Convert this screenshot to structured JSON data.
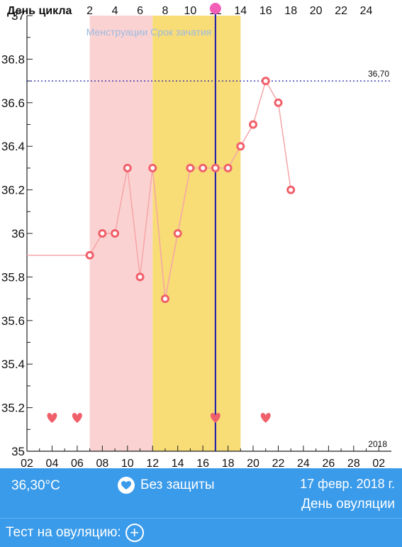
{
  "chart_data": {
    "type": "line",
    "title": "День цикла",
    "year_label": "2018",
    "y_ticks": [
      "35",
      "35.2",
      "35.4",
      "35.6",
      "35.8",
      "36",
      "36.2",
      "36.4",
      "36.6",
      "36.8",
      "37"
    ],
    "ylim": [
      35,
      37
    ],
    "top_axis_ticks": [
      2,
      4,
      6,
      8,
      10,
      12,
      14,
      16,
      18,
      20,
      22,
      24
    ],
    "bottom_axis_ticks": [
      "02",
      "04",
      "06",
      "08",
      "10",
      "12",
      "14",
      "16",
      "18",
      "20",
      "22",
      "24",
      "26",
      "28",
      "02"
    ],
    "bottom_axis_values": [
      2,
      4,
      6,
      8,
      10,
      12,
      14,
      16,
      18,
      20,
      22,
      24,
      26,
      28,
      30
    ],
    "x_range": [
      2,
      31
    ],
    "series": [
      {
        "x": [
          7,
          8,
          9,
          10,
          11,
          12,
          13,
          14,
          15,
          16,
          17,
          18,
          19,
          20,
          21,
          22,
          23
        ],
        "values": [
          35.9,
          36.0,
          36.0,
          36.3,
          35.8,
          36.3,
          35.7,
          36.0,
          36.3,
          36.3,
          36.3,
          36.3,
          36.4,
          36.5,
          36.7,
          36.6,
          36.2
        ]
      }
    ],
    "lead_in": {
      "from": 2,
      "to": 7,
      "value": 35.9
    },
    "coverline": {
      "value": 36.7,
      "label": "36,70"
    },
    "ovulation_day": 17,
    "bands": [
      {
        "name": "Менструации",
        "from": 7,
        "to": 12,
        "color": "#fbd2d2"
      },
      {
        "name": "Срок зачатия",
        "from": 12,
        "to": 19,
        "color": "#f8dc76"
      }
    ],
    "hearts": [
      4,
      6,
      17,
      21
    ],
    "colors": {
      "line": "#f5a5a8",
      "marker": "#f0606a",
      "heart": "#f0606a",
      "coverline": "#1a1aa8",
      "ovulation": "#1a1aa8"
    }
  },
  "info": {
    "temperature": "36,30°C",
    "protection": "Без защиты",
    "date": "17 февр. 2018 г.",
    "status": "День овуляции",
    "protection_icon": "heart-icon"
  },
  "test": {
    "label": "Тест на овуляцию:",
    "add_icon": "plus-circle-icon",
    "add_glyph": "+"
  }
}
